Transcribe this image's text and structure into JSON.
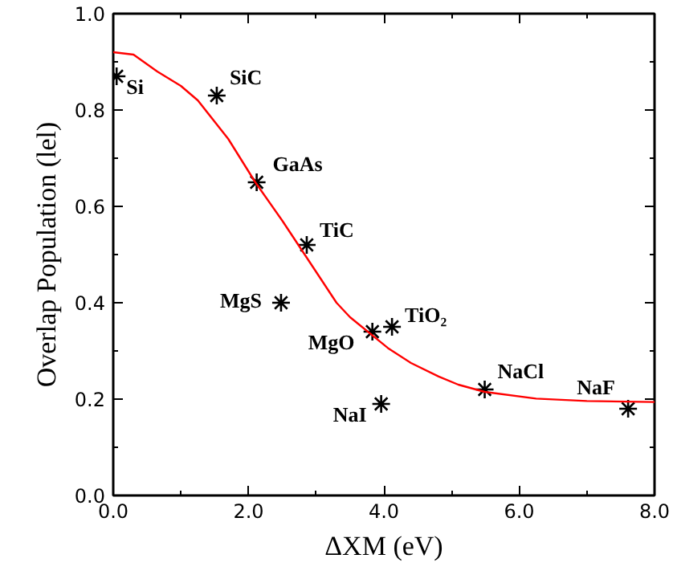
{
  "chart_data": {
    "type": "scatter",
    "xlabel": "ΔXM (eV)",
    "ylabel": "Overlap Population (lel)",
    "xlim": [
      0,
      8
    ],
    "ylim": [
      0,
      1
    ],
    "xticks": [
      {
        "value": 0,
        "label": "0.0"
      },
      {
        "value": 2,
        "label": "2.0"
      },
      {
        "value": 4,
        "label": "4.0"
      },
      {
        "value": 6,
        "label": "6.0"
      },
      {
        "value": 8,
        "label": "8.0"
      }
    ],
    "yticks": [
      {
        "value": 0,
        "label": "0.0"
      },
      {
        "value": 0.2,
        "label": "0.2"
      },
      {
        "value": 0.4,
        "label": "0.4"
      },
      {
        "value": 0.6,
        "label": "0.6"
      },
      {
        "value": 0.8,
        "label": "0.8"
      },
      {
        "value": 1,
        "label": "1.0"
      }
    ],
    "grid": false,
    "series": [
      {
        "marker": "cross",
        "color": "#000000",
        "x": [
          0.05,
          1.53,
          2.12,
          2.86,
          2.48,
          3.83,
          4.12,
          3.96,
          5.49,
          7.61
        ],
        "values": [
          0.87,
          0.83,
          0.65,
          0.52,
          0.4,
          0.34,
          0.35,
          0.19,
          0.22,
          0.18
        ]
      },
      {
        "type": "line",
        "marker": "none",
        "color": "#ff0000",
        "x": [
          0,
          0.3,
          0.65,
          1.0,
          1.25,
          1.7,
          2.1,
          2.5,
          2.83,
          3.3,
          3.5,
          4.06,
          4.4,
          4.81,
          5.1,
          5.49,
          6.25,
          7.0,
          8.0
        ],
        "values": [
          0.92,
          0.915,
          0.88,
          0.85,
          0.82,
          0.74,
          0.65,
          0.57,
          0.5,
          0.4,
          0.37,
          0.306,
          0.275,
          0.247,
          0.23,
          0.215,
          0.201,
          0.196,
          0.194
        ]
      }
    ],
    "annotations": [
      {
        "text": "Si",
        "x": 0.05,
        "y": 0.87
      },
      {
        "text": "SiC",
        "x": 1.53,
        "y": 0.83
      },
      {
        "text": "GaAs",
        "x": 2.12,
        "y": 0.65
      },
      {
        "text": "TiC",
        "x": 2.86,
        "y": 0.52
      },
      {
        "text": "MgS",
        "x": 2.48,
        "y": 0.4
      },
      {
        "text": "MgO",
        "x": 3.83,
        "y": 0.34
      },
      {
        "text": "TiO₂",
        "x": 4.12,
        "y": 0.35
      },
      {
        "text": "NaI",
        "x": 3.96,
        "y": 0.19
      },
      {
        "text": "NaCl",
        "x": 5.49,
        "y": 0.22
      },
      {
        "text": "NaF",
        "x": 7.61,
        "y": 0.18
      }
    ]
  }
}
